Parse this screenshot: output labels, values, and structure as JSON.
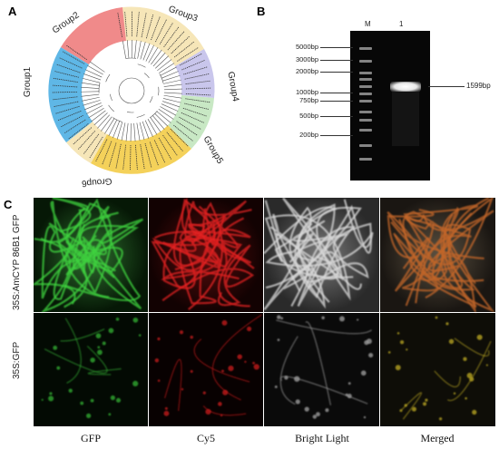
{
  "panels": {
    "a": "A",
    "b": "B",
    "c": "C"
  },
  "tree": {
    "groups": [
      "Group1",
      "Group2",
      "Group3",
      "Group4",
      "Group5",
      "Group6"
    ],
    "colors": {
      "group1": "#5fb7e6",
      "group2": "#f08a8a",
      "group3": "#f6e6b8",
      "group4": "#c9c6ec",
      "group5": "#c8e8c4",
      "group6": "#f4d15a"
    }
  },
  "gel": {
    "lane_labels": [
      "M",
      "1"
    ],
    "ladder": [
      "5000bp",
      "3000bp",
      "2000bp",
      "1000bp",
      "750bp",
      "500bp",
      "200bp"
    ],
    "band_label": "1599bp"
  },
  "micro": {
    "columns": [
      "GFP",
      "Cy5",
      "Bright Light",
      "Merged"
    ],
    "rows": [
      "35S:AmCYP 86B1 GFP",
      "35S:GFP"
    ]
  }
}
